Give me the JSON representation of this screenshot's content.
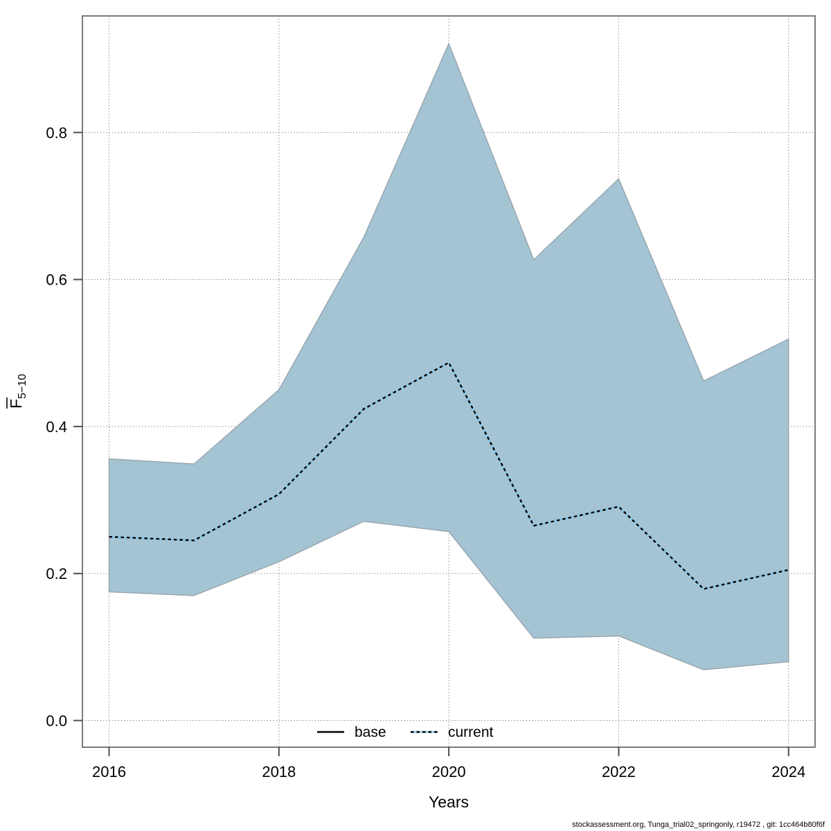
{
  "chart_data": {
    "type": "area",
    "title": "",
    "xlabel": "Years",
    "ylabel": {
      "base": "F",
      "overbar": true,
      "sub": "5−10",
      "display": "F̄5−10"
    },
    "x": [
      2016,
      2017,
      2018,
      2019,
      2020,
      2021,
      2022,
      2023,
      2024
    ],
    "series": [
      {
        "name": "current",
        "role": "median-line",
        "style": "dashed",
        "values": [
          0.25,
          0.245,
          0.308,
          0.424,
          0.487,
          0.265,
          0.291,
          0.179,
          0.205
        ]
      },
      {
        "name": "current-upper",
        "role": "band-upper",
        "values": [
          0.356,
          0.349,
          0.45,
          0.658,
          0.921,
          0.627,
          0.737,
          0.462,
          0.519
        ]
      },
      {
        "name": "current-lower",
        "role": "band-lower",
        "values": [
          0.175,
          0.17,
          0.216,
          0.271,
          0.257,
          0.112,
          0.115,
          0.069,
          0.08
        ]
      }
    ],
    "xticks": [
      {
        "value": 2016,
        "label": "2016"
      },
      {
        "value": 2018,
        "label": "2018"
      },
      {
        "value": 2020,
        "label": "2020"
      },
      {
        "value": 2022,
        "label": "2022"
      },
      {
        "value": 2024,
        "label": "2024"
      }
    ],
    "yticks": [
      {
        "value": 0.0,
        "label": "0.0"
      },
      {
        "value": 0.2,
        "label": "0.2"
      },
      {
        "value": 0.4,
        "label": "0.4"
      },
      {
        "value": 0.6,
        "label": "0.6"
      },
      {
        "value": 0.8,
        "label": "0.8"
      }
    ],
    "xlim": [
      2015.686,
      2024.312
    ],
    "ylim": [
      -0.0363,
      0.9586
    ],
    "grid": "dotted-both-axes",
    "legend": {
      "position": "inside-bottom-center",
      "items": [
        {
          "label": "base",
          "line": "solid",
          "color": "#000000"
        },
        {
          "label": "current",
          "line": "dashed",
          "color_under": "#82c8eb",
          "color_dash": "#000000"
        }
      ]
    },
    "colors": {
      "band_fill": "#a4c4d4",
      "band_border": "#97a4ac",
      "median_under": "#82c8eb",
      "median_dash": "#000000",
      "grid": "#7a7a7a",
      "plot_border": "#7a7a7a",
      "tick": "#4d4d4d",
      "text": "#000000"
    }
  },
  "footer": {
    "text": "stockassessment.org, Tunga_trial02_springonly, r19472 , git: 1cc464b80f6f"
  }
}
